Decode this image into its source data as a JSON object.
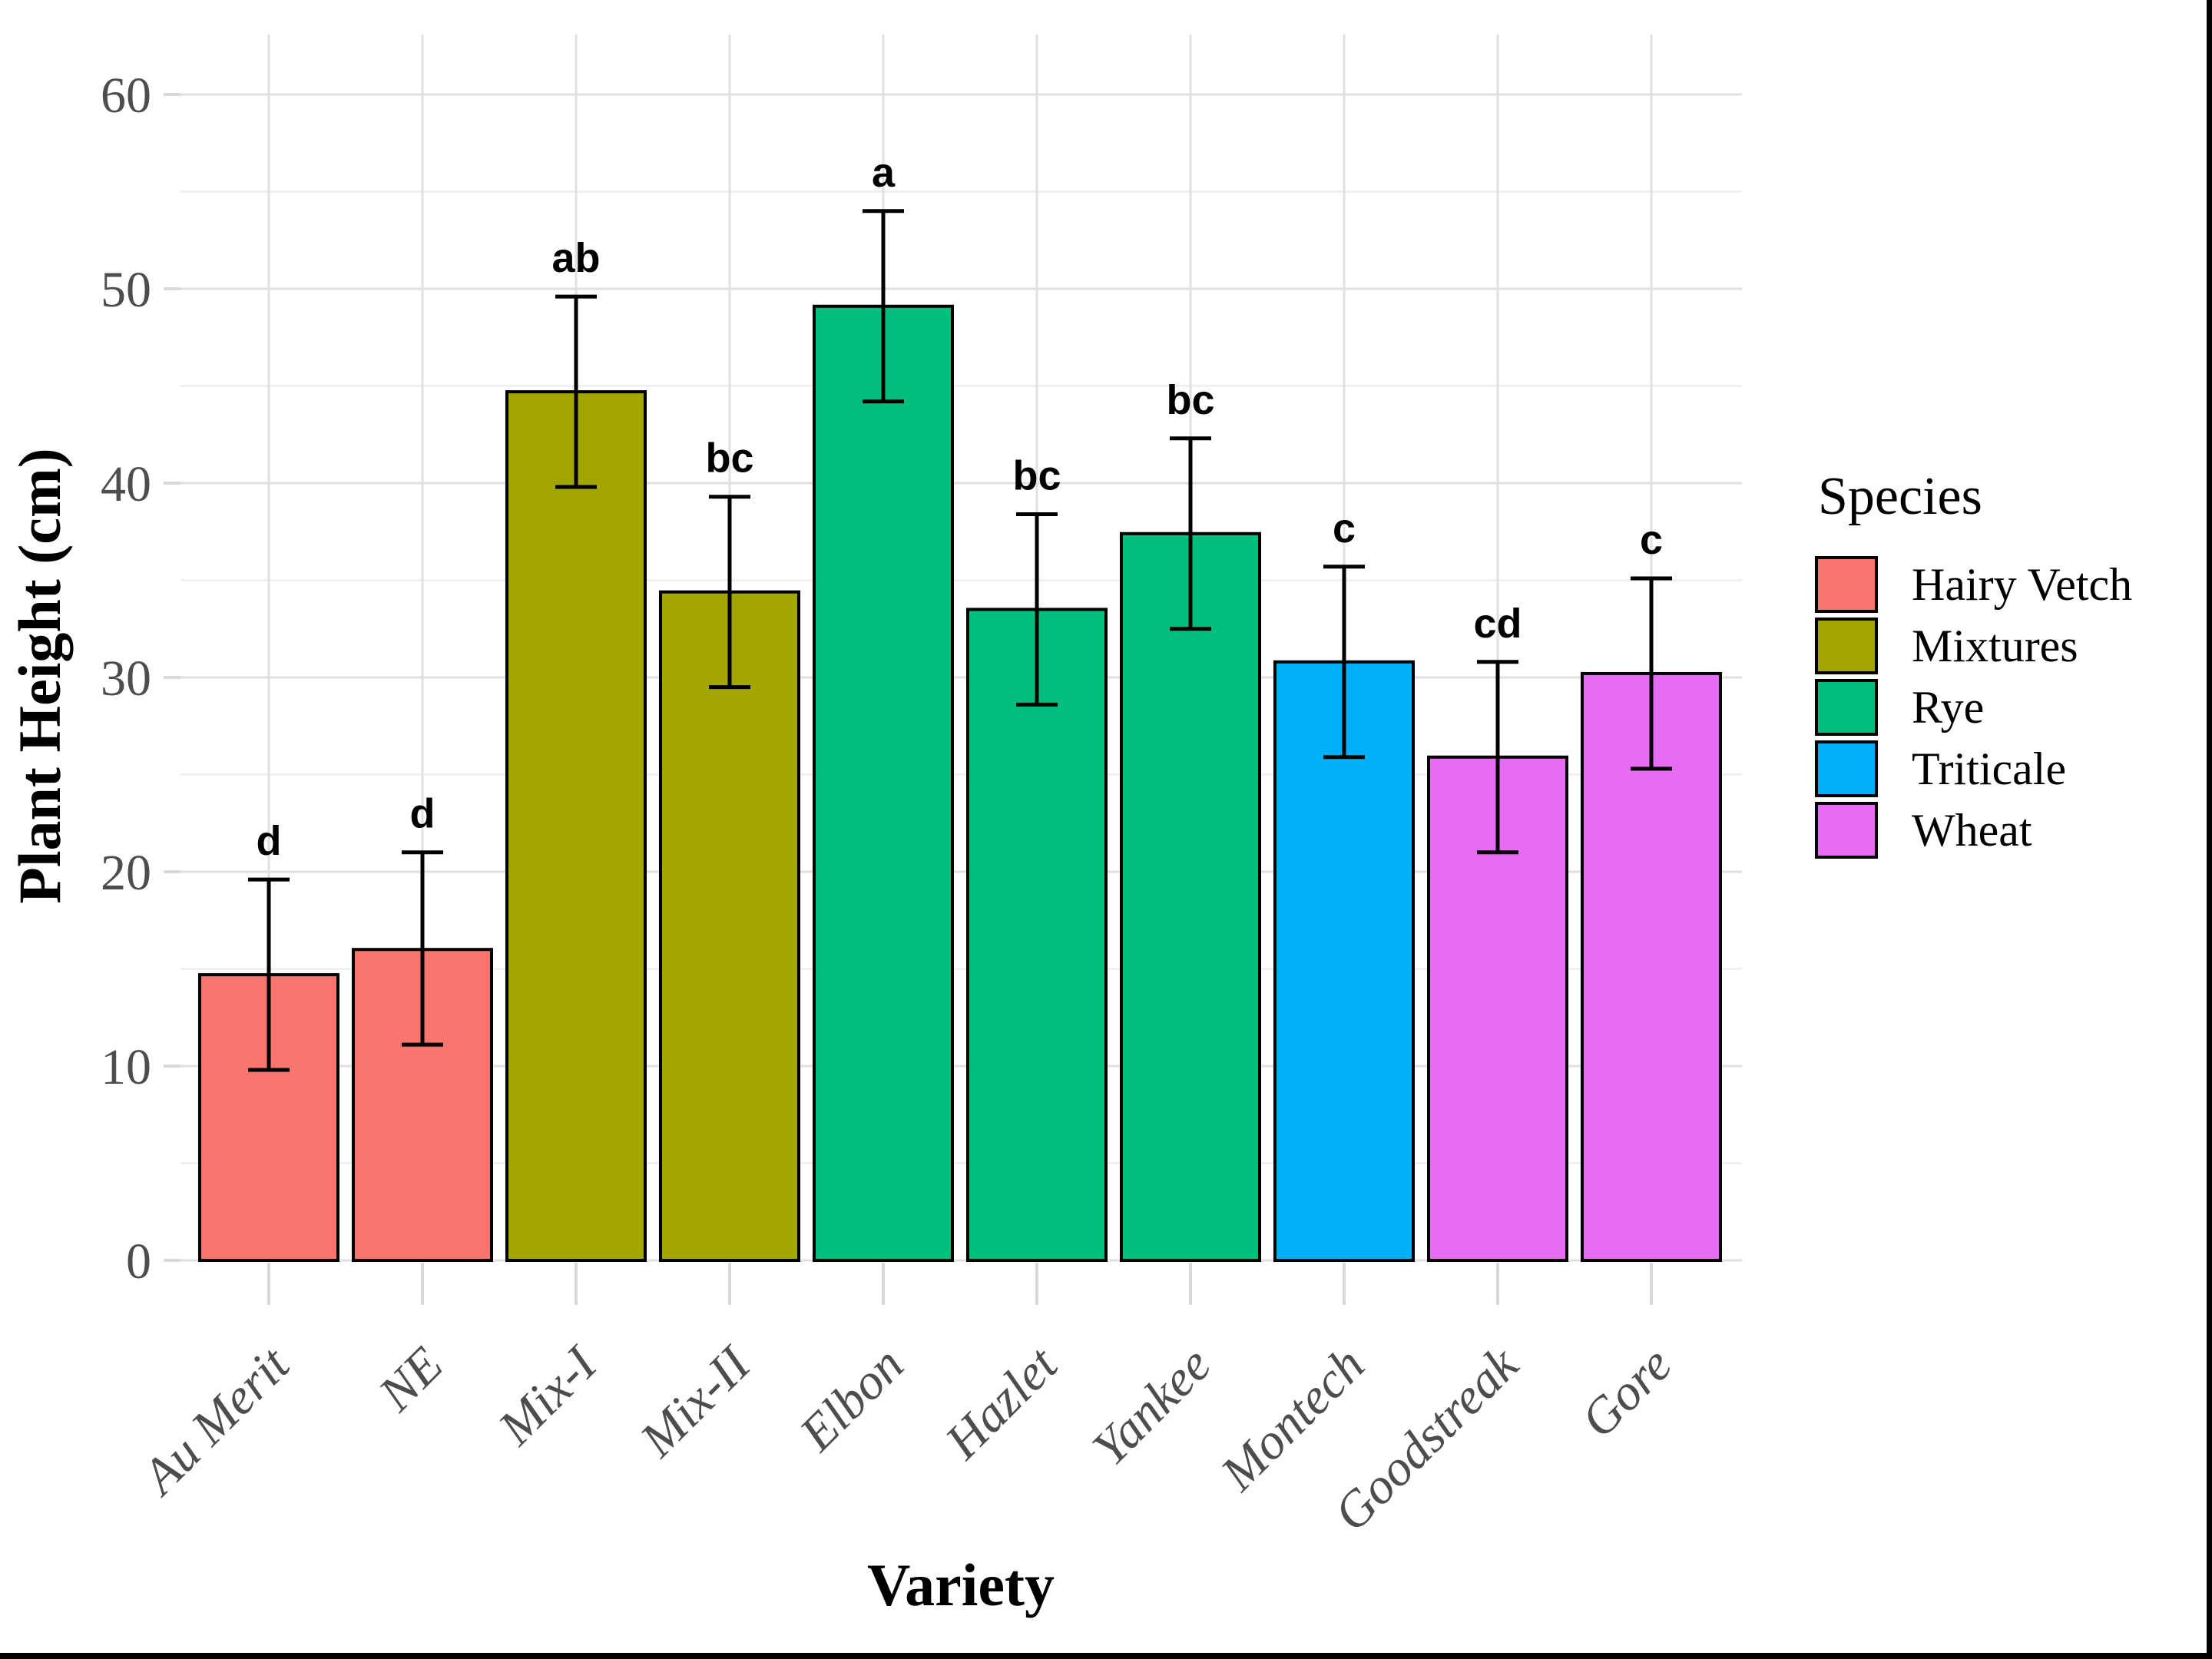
{
  "figure": {
    "kind": "ggplot bar chart with error bars and significance letters",
    "background": "#ffffff",
    "frame_border_color": "#000000"
  },
  "axes": {
    "x_title": "Variety",
    "y_title": "Plant Height (cm)",
    "y_tick_labels": [
      "0",
      "10",
      "20",
      "30",
      "40",
      "50",
      "60"
    ],
    "tick_color": "#d9d9d9",
    "label_color": "#4d4d4d",
    "grid_major_color": "#e0e0e0",
    "grid_minor_color": "#f0f0f0"
  },
  "legend": {
    "title": "Species",
    "items": [
      {
        "label": "Hairy Vetch",
        "color": "#F8766D"
      },
      {
        "label": "Mixtures",
        "color": "#A3A500"
      },
      {
        "label": "Rye",
        "color": "#00BF7D"
      },
      {
        "label": "Triticale",
        "color": "#00B0F6"
      },
      {
        "label": "Wheat",
        "color": "#E76BF3"
      }
    ]
  },
  "chart_data": {
    "type": "bar",
    "title": "",
    "xlabel": "Variety",
    "ylabel": "Plant Height (cm)",
    "categories": [
      "Au Merit",
      "NE",
      "Mix-I",
      "Mix-II",
      "Elbon",
      "Hazlet",
      "Yankee",
      "Montech",
      "Goodstreak",
      "Gore"
    ],
    "values": [
      14.7,
      16.0,
      44.7,
      34.4,
      49.1,
      33.5,
      37.4,
      30.8,
      25.9,
      30.2
    ],
    "error_low": [
      9.8,
      11.1,
      39.8,
      29.5,
      44.2,
      28.6,
      32.5,
      25.9,
      21.0,
      25.3
    ],
    "error_high": [
      19.6,
      21.0,
      49.6,
      39.3,
      54.0,
      38.4,
      42.3,
      35.7,
      30.8,
      35.1
    ],
    "sig_letters": [
      "d",
      "d",
      "ab",
      "bc",
      "a",
      "bc",
      "bc",
      "c",
      "cd",
      "c"
    ],
    "species": [
      "Hairy Vetch",
      "Hairy Vetch",
      "Mixtures",
      "Mixtures",
      "Rye",
      "Rye",
      "Rye",
      "Triticale",
      "Wheat",
      "Wheat"
    ],
    "colors": {
      "Hairy Vetch": "#F8766D",
      "Mixtures": "#A3A500",
      "Rye": "#00BF7D",
      "Triticale": "#00B0F6",
      "Wheat": "#E76BF3"
    },
    "bar_outline_color": "#000000",
    "error_bar_color": "#000000",
    "ylim": [
      0,
      62
    ],
    "y_major_ticks": [
      0,
      10,
      20,
      30,
      40,
      50,
      60
    ],
    "y_minor_ticks": [
      5,
      15,
      25,
      35,
      45,
      55
    ],
    "grid": true,
    "legend_position": "right"
  }
}
